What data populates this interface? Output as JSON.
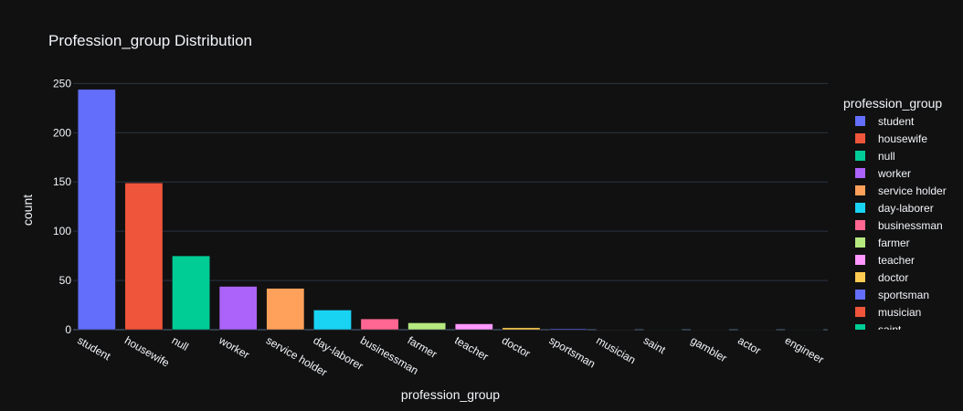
{
  "chart_data": {
    "type": "bar",
    "title": "Profession_group Distribution",
    "xlabel": "profession_group",
    "ylabel": "count",
    "ylim": [
      0,
      255
    ],
    "yticks": [
      0,
      50,
      100,
      150,
      200,
      250
    ],
    "grid": true,
    "legend": {
      "title": "profession_group",
      "position": "right"
    },
    "series": [
      {
        "name": "student",
        "category": "student",
        "value": 244,
        "color": "#636efa"
      },
      {
        "name": "housewife",
        "category": "housewife",
        "value": 149,
        "color": "#EF553B"
      },
      {
        "name": "null",
        "category": "null",
        "value": 75,
        "color": "#00cc96"
      },
      {
        "name": "worker",
        "category": "worker",
        "value": 44,
        "color": "#ab63fa"
      },
      {
        "name": "service holder",
        "category": "service holder",
        "value": 42,
        "color": "#FFA15A"
      },
      {
        "name": "day-laborer",
        "category": "day-laborer",
        "value": 20,
        "color": "#19d3f3"
      },
      {
        "name": "businessman",
        "category": "businessman",
        "value": 11,
        "color": "#FF6692"
      },
      {
        "name": "farmer",
        "category": "farmer",
        "value": 7,
        "color": "#B6E880"
      },
      {
        "name": "teacher",
        "category": "teacher",
        "value": 6,
        "color": "#FF97FF"
      },
      {
        "name": "doctor",
        "category": "doctor",
        "value": 2,
        "color": "#FECB52"
      },
      {
        "name": "sportsman",
        "category": "sportsman",
        "value": 1,
        "color": "#636efa"
      },
      {
        "name": "musician",
        "category": "musician",
        "value": 0.4,
        "color": "#EF553B"
      },
      {
        "name": "saint",
        "category": "saint",
        "value": 0.3,
        "color": "#00cc96"
      },
      {
        "name": "gambler",
        "category": "gambler",
        "value": 0.3,
        "color": "#ab63fa"
      },
      {
        "name": "actor",
        "category": "actor",
        "value": 0.3,
        "color": "#FFA15A"
      },
      {
        "name": "engineer",
        "category": "engineer",
        "value": 0.3,
        "color": "#19d3f3"
      }
    ]
  }
}
